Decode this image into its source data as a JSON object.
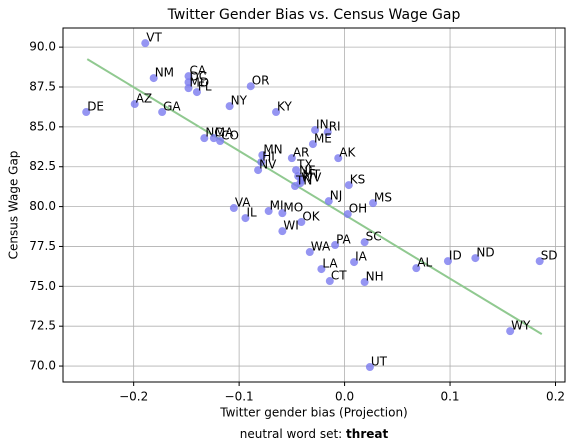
{
  "chart_data": {
    "type": "scatter",
    "title": "Twitter Gender Bias vs. Census Wage Gap",
    "x_label": "Twitter gender bias (Projection)",
    "y_label": "Census Wage Gap",
    "caption": {
      "text": "neutral word set:",
      "emphasis": "threat"
    },
    "labels": [
      "VT",
      "NM",
      "CA",
      "DC",
      "MD",
      "FL",
      "OR",
      "DE",
      "AZ",
      "GA",
      "NY",
      "KY",
      "NC",
      "MA",
      "CO",
      "IN",
      "RI",
      "ME",
      "MN",
      "AR",
      "AK",
      "HI",
      "NV",
      "TX",
      "NE",
      "MT",
      "WV",
      "TN",
      "KS",
      "NJ",
      "MS",
      "VA",
      "MI",
      "MO",
      "IL",
      "OH",
      "OK",
      "WI",
      "PA",
      "SC",
      "WA",
      "ID",
      "ND",
      "SD",
      "IA",
      "LA",
      "AL",
      "CT",
      "NH",
      "WY",
      "UT"
    ],
    "x": [
      -0.189,
      -0.181,
      -0.148,
      -0.148,
      -0.148,
      -0.14,
      -0.089,
      -0.245,
      -0.199,
      -0.173,
      -0.109,
      -0.065,
      -0.133,
      -0.124,
      -0.118,
      -0.028,
      -0.016,
      -0.03,
      -0.078,
      -0.05,
      -0.006,
      -0.079,
      -0.082,
      -0.046,
      -0.044,
      -0.041,
      -0.042,
      -0.047,
      0.004,
      -0.015,
      0.027,
      -0.105,
      -0.072,
      -0.059,
      -0.094,
      0.003,
      -0.041,
      -0.059,
      -0.009,
      0.019,
      -0.033,
      0.098,
      0.124,
      0.185,
      0.009,
      -0.022,
      0.068,
      -0.014,
      0.019,
      0.157,
      0.024
    ],
    "values": [
      90.25,
      88.06,
      88.18,
      87.8,
      87.43,
      87.18,
      87.55,
      85.93,
      86.43,
      85.93,
      86.3,
      85.93,
      84.29,
      84.29,
      84.11,
      84.8,
      84.67,
      83.92,
      83.23,
      83.04,
      83.04,
      82.79,
      82.29,
      82.29,
      81.91,
      81.66,
      81.47,
      81.29,
      81.35,
      80.34,
      80.22,
      79.91,
      79.72,
      79.59,
      79.28,
      79.53,
      79.03,
      78.46,
      77.59,
      77.77,
      77.15,
      76.58,
      76.77,
      76.58,
      76.52,
      76.08,
      76.14,
      75.33,
      75.27,
      72.19,
      69.94
    ],
    "color": "#7b7bef",
    "fit": {
      "x": [
        -0.244,
        0.187
      ],
      "values": [
        89.25,
        72.0
      ],
      "color": "#90c990"
    },
    "xlim": [
      -0.267,
      0.209
    ],
    "ylim": [
      69.0,
      91.2
    ],
    "xticks": [
      {
        "value": -0.2,
        "label": "−0.2"
      },
      {
        "value": -0.1,
        "label": "−0.1"
      },
      {
        "value": 0,
        "label": "0.0"
      },
      {
        "value": 0.1,
        "label": "0.1"
      },
      {
        "value": 0.2,
        "label": "0.2"
      }
    ],
    "yticks": [
      {
        "value": 70,
        "label": "70.0"
      },
      {
        "value": 72.5,
        "label": "72.5"
      },
      {
        "value": 75,
        "label": "75.0"
      },
      {
        "value": 77.5,
        "label": "77.5"
      },
      {
        "value": 80,
        "label": "80.0"
      },
      {
        "value": 82.5,
        "label": "82.5"
      },
      {
        "value": 85,
        "label": "85.0"
      },
      {
        "value": 87.5,
        "label": "87.5"
      },
      {
        "value": 90,
        "label": "90.0"
      }
    ],
    "grid": true
  }
}
